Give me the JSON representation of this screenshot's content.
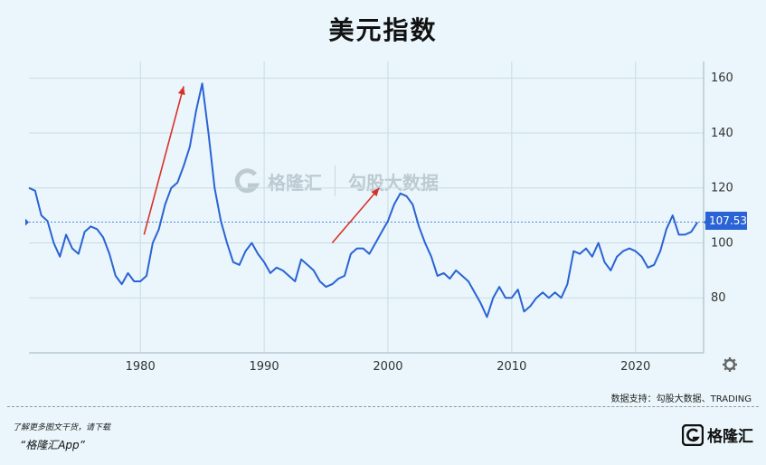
{
  "page": {
    "title": "美元指数",
    "source": "数据支持：勾股大数据、TRADING",
    "promo_line1": "了解更多图文干货，请下载",
    "promo_line2": "“格隆汇App”",
    "logo_text": "格隆汇",
    "watermark_text1": "格隆汇",
    "watermark_text2": "勾股大数据"
  },
  "colors": {
    "line": "#2a63d6",
    "arrow": "#d9312a",
    "grid": "#c9dbe4",
    "reference": "#2a63d6"
  },
  "icons": [
    "settings-gear-icon",
    "logo-g-icon",
    "watermark-g-icon"
  ],
  "chart_data": {
    "type": "line",
    "title": "美元指数",
    "xlabel": "",
    "ylabel": "",
    "x_ticks": [
      1980,
      1990,
      2000,
      2010,
      2020
    ],
    "y_ticks": [
      80,
      100,
      120,
      140,
      160
    ],
    "xlim": [
      1971.0,
      2025.5
    ],
    "ylim": [
      60,
      166
    ],
    "grid": true,
    "current_value": 107.53,
    "current_value_label": "107.53",
    "series": [
      {
        "name": "",
        "x": [
          1971.0,
          1971.5,
          1972.0,
          1972.5,
          1973.0,
          1973.5,
          1974.0,
          1974.5,
          1975.0,
          1975.5,
          1976.0,
          1976.5,
          1977.0,
          1977.5,
          1978.0,
          1978.5,
          1979.0,
          1979.5,
          1980.0,
          1980.5,
          1981.0,
          1981.5,
          1982.0,
          1982.5,
          1983.0,
          1983.5,
          1984.0,
          1984.5,
          1985.0,
          1985.5,
          1986.0,
          1986.5,
          1987.0,
          1987.5,
          1988.0,
          1988.5,
          1989.0,
          1989.5,
          1990.0,
          1990.5,
          1991.0,
          1991.5,
          1992.0,
          1992.5,
          1993.0,
          1993.5,
          1994.0,
          1994.5,
          1995.0,
          1995.5,
          1996.0,
          1996.5,
          1997.0,
          1997.5,
          1998.0,
          1998.5,
          1999.0,
          1999.5,
          2000.0,
          2000.5,
          2001.0,
          2001.5,
          2002.0,
          2002.5,
          2003.0,
          2003.5,
          2004.0,
          2004.5,
          2005.0,
          2005.5,
          2006.0,
          2006.5,
          2007.0,
          2007.5,
          2008.0,
          2008.5,
          2009.0,
          2009.5,
          2010.0,
          2010.5,
          2011.0,
          2011.5,
          2012.0,
          2012.5,
          2013.0,
          2013.5,
          2014.0,
          2014.5,
          2015.0,
          2015.5,
          2016.0,
          2016.5,
          2017.0,
          2017.5,
          2018.0,
          2018.5,
          2019.0,
          2019.5,
          2020.0,
          2020.5,
          2021.0,
          2021.5,
          2022.0,
          2022.5,
          2023.0,
          2023.5,
          2024.0,
          2024.5,
          2025.0
        ],
        "values": [
          120,
          119,
          110,
          108,
          100,
          95,
          103,
          98,
          96,
          104,
          106,
          105,
          102,
          96,
          88,
          85,
          89,
          86,
          86,
          88,
          100,
          105,
          114,
          120,
          122,
          128,
          135,
          148,
          158,
          140,
          120,
          108,
          100,
          93,
          92,
          97,
          100,
          96,
          93,
          89,
          91,
          90,
          88,
          86,
          94,
          92,
          90,
          86,
          84,
          85,
          87,
          88,
          96,
          98,
          98,
          96,
          100,
          104,
          108,
          114,
          118,
          117,
          114,
          106,
          100,
          95,
          88,
          89,
          87,
          90,
          88,
          86,
          82,
          78,
          73,
          80,
          84,
          80,
          80,
          83,
          75,
          77,
          80,
          82,
          80,
          82,
          80,
          85,
          97,
          96,
          98,
          95,
          100,
          93,
          90,
          95,
          97,
          98,
          97,
          95,
          91,
          92,
          97,
          105,
          110,
          103,
          103,
          104,
          107.5
        ]
      }
    ],
    "annotations": [
      {
        "type": "arrow",
        "from": [
          1980.3,
          103
        ],
        "to": [
          1983.5,
          157
        ]
      },
      {
        "type": "arrow",
        "from": [
          1995.5,
          100
        ],
        "to": [
          1999.3,
          120
        ]
      }
    ]
  }
}
